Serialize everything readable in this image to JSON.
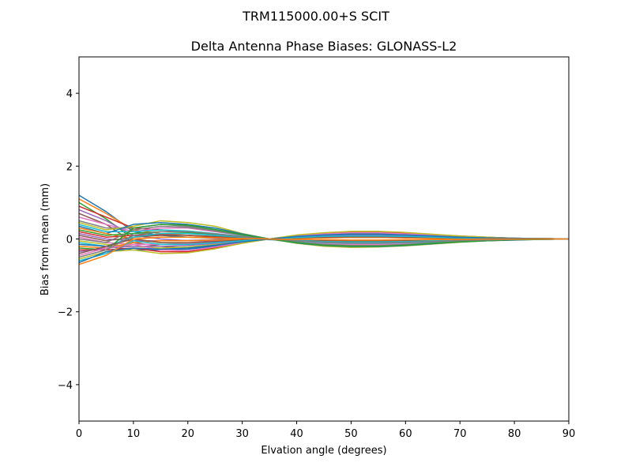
{
  "figure": {
    "suptitle": "TRM115000.00+S  SCIT"
  },
  "chart_data": {
    "type": "line",
    "title": "Delta Antenna Phase Biases: GLONASS-L2",
    "xlabel": "Elvation angle (degrees)",
    "ylabel": "Bias from mean (mm)",
    "xlim": [
      0,
      90
    ],
    "ylim": [
      -5,
      5
    ],
    "xticks": [
      0,
      10,
      20,
      30,
      40,
      50,
      60,
      70,
      80,
      90
    ],
    "yticks": [
      -4,
      -2,
      0,
      2,
      4
    ],
    "xtick_labels": [
      "0",
      "10",
      "20",
      "30",
      "40",
      "50",
      "60",
      "70",
      "80",
      "90"
    ],
    "ytick_labels": [
      "−4",
      "−2",
      "0",
      "2",
      "4"
    ],
    "grid": false,
    "legend": "none",
    "x": [
      0,
      5,
      10,
      15,
      20,
      25,
      30,
      35,
      40,
      45,
      50,
      55,
      60,
      65,
      70,
      75,
      80,
      85,
      90
    ],
    "colors": [
      "#1f77b4",
      "#ff7f0e",
      "#2ca02c",
      "#d62728",
      "#9467bd",
      "#8c564b",
      "#e377c2",
      "#7f7f7f",
      "#bcbd22",
      "#17becf"
    ],
    "series": [
      {
        "values": [
          1.2,
          0.75,
          0.2,
          0.1,
          0.05,
          0.02,
          0.0,
          -0.02,
          -0.05,
          -0.08,
          -0.1,
          -0.1,
          -0.09,
          -0.07,
          -0.05,
          -0.03,
          -0.02,
          -0.01,
          0.0
        ]
      },
      {
        "values": [
          1.1,
          0.7,
          0.25,
          0.15,
          0.1,
          0.05,
          0.02,
          0.0,
          -0.04,
          -0.07,
          -0.09,
          -0.09,
          -0.08,
          -0.06,
          -0.04,
          -0.03,
          -0.02,
          -0.01,
          0.0
        ]
      },
      {
        "values": [
          1.0,
          0.55,
          0.0,
          -0.1,
          -0.12,
          -0.08,
          -0.04,
          0.0,
          0.04,
          0.07,
          0.09,
          0.09,
          0.08,
          0.06,
          0.04,
          0.03,
          0.02,
          0.01,
          0.0
        ]
      },
      {
        "values": [
          0.9,
          0.6,
          0.3,
          0.25,
          0.2,
          0.12,
          0.05,
          0.0,
          -0.05,
          -0.1,
          -0.12,
          -0.12,
          -0.1,
          -0.08,
          -0.05,
          -0.03,
          -0.02,
          -0.01,
          0.0
        ]
      },
      {
        "values": [
          0.8,
          0.5,
          0.1,
          0.0,
          -0.05,
          -0.05,
          -0.03,
          0.0,
          0.03,
          0.06,
          0.07,
          0.07,
          0.06,
          0.05,
          0.03,
          0.02,
          0.01,
          0.0,
          0.0
        ]
      },
      {
        "values": [
          0.7,
          0.4,
          -0.1,
          -0.2,
          -0.25,
          -0.2,
          -0.1,
          0.0,
          0.07,
          0.12,
          0.14,
          0.14,
          0.12,
          0.09,
          0.06,
          0.04,
          0.02,
          0.01,
          0.0
        ]
      },
      {
        "values": [
          0.6,
          0.4,
          0.2,
          0.3,
          0.3,
          0.2,
          0.1,
          0.0,
          -0.08,
          -0.13,
          -0.15,
          -0.15,
          -0.13,
          -0.1,
          -0.07,
          -0.04,
          -0.02,
          -0.01,
          0.0
        ]
      },
      {
        "values": [
          0.5,
          0.3,
          0.3,
          0.4,
          0.35,
          0.25,
          0.12,
          0.0,
          -0.1,
          -0.16,
          -0.2,
          -0.2,
          -0.17,
          -0.13,
          -0.08,
          -0.05,
          -0.02,
          -0.01,
          0.0
        ]
      },
      {
        "values": [
          0.45,
          0.25,
          0.35,
          0.5,
          0.45,
          0.35,
          0.15,
          0.0,
          -0.12,
          -0.2,
          -0.23,
          -0.22,
          -0.19,
          -0.14,
          -0.09,
          -0.05,
          -0.03,
          -0.01,
          0.0
        ]
      },
      {
        "values": [
          0.4,
          0.2,
          0.2,
          0.25,
          0.22,
          0.15,
          0.07,
          0.0,
          -0.06,
          -0.1,
          -0.12,
          -0.12,
          -0.1,
          -0.08,
          -0.05,
          -0.03,
          -0.02,
          -0.01,
          0.0
        ]
      },
      {
        "values": [
          0.35,
          0.15,
          0.4,
          0.45,
          0.4,
          0.3,
          0.14,
          0.0,
          -0.11,
          -0.18,
          -0.21,
          -0.21,
          -0.18,
          -0.13,
          -0.08,
          -0.05,
          -0.03,
          -0.01,
          0.0
        ]
      },
      {
        "values": [
          0.3,
          0.15,
          0.0,
          0.05,
          0.05,
          0.03,
          0.01,
          0.0,
          -0.02,
          -0.03,
          -0.04,
          -0.04,
          -0.03,
          -0.02,
          -0.01,
          -0.01,
          0.0,
          0.0,
          0.0
        ]
      },
      {
        "values": [
          0.25,
          0.1,
          0.15,
          0.2,
          0.18,
          0.12,
          0.06,
          0.0,
          -0.05,
          -0.08,
          -0.1,
          -0.1,
          -0.08,
          -0.06,
          -0.04,
          -0.02,
          -0.01,
          0.0,
          0.0
        ]
      },
      {
        "values": [
          0.2,
          0.05,
          0.1,
          0.12,
          0.1,
          0.06,
          0.03,
          0.0,
          -0.03,
          -0.05,
          -0.06,
          -0.06,
          -0.05,
          -0.04,
          -0.02,
          -0.01,
          -0.01,
          0.0,
          0.0
        ]
      },
      {
        "values": [
          0.15,
          0.0,
          -0.05,
          -0.05,
          -0.04,
          -0.02,
          -0.01,
          0.0,
          0.02,
          0.03,
          0.04,
          0.04,
          0.03,
          0.02,
          0.01,
          0.01,
          0.0,
          0.0,
          0.0
        ]
      },
      {
        "values": [
          0.1,
          -0.05,
          0.05,
          0.1,
          0.1,
          0.07,
          0.03,
          0.0,
          -0.03,
          -0.05,
          -0.06,
          -0.06,
          -0.05,
          -0.04,
          -0.02,
          -0.01,
          -0.01,
          0.0,
          0.0
        ]
      },
      {
        "values": [
          0.05,
          -0.1,
          -0.15,
          -0.15,
          -0.13,
          -0.08,
          -0.03,
          0.0,
          0.04,
          0.07,
          0.08,
          0.08,
          0.07,
          0.05,
          0.03,
          0.02,
          0.01,
          0.0,
          0.0
        ]
      },
      {
        "values": [
          0.0,
          -0.1,
          0.25,
          0.35,
          0.32,
          0.22,
          0.1,
          0.0,
          -0.09,
          -0.15,
          -0.18,
          -0.18,
          -0.15,
          -0.11,
          -0.07,
          -0.04,
          -0.02,
          -0.01,
          0.0
        ]
      },
      {
        "values": [
          -0.05,
          -0.15,
          -0.2,
          -0.25,
          -0.22,
          -0.15,
          -0.07,
          0.0,
          0.06,
          0.1,
          0.12,
          0.12,
          0.1,
          0.08,
          0.05,
          0.03,
          0.02,
          0.01,
          0.0
        ]
      },
      {
        "values": [
          -0.1,
          -0.2,
          0.05,
          0.15,
          0.15,
          0.1,
          0.05,
          0.0,
          -0.04,
          -0.07,
          -0.08,
          -0.08,
          -0.07,
          -0.05,
          -0.03,
          -0.02,
          -0.01,
          0.0,
          0.0
        ]
      },
      {
        "values": [
          -0.15,
          -0.2,
          -0.3,
          -0.3,
          -0.28,
          -0.2,
          -0.09,
          0.0,
          0.08,
          0.13,
          0.16,
          0.16,
          0.14,
          0.1,
          0.06,
          0.04,
          0.02,
          0.01,
          0.0
        ]
      },
      {
        "values": [
          -0.2,
          -0.25,
          -0.1,
          -0.05,
          -0.05,
          -0.03,
          -0.01,
          0.0,
          0.02,
          0.03,
          0.04,
          0.04,
          0.03,
          0.02,
          0.02,
          0.01,
          0.0,
          0.0,
          0.0
        ]
      },
      {
        "values": [
          -0.25,
          -0.3,
          0.3,
          0.4,
          0.38,
          0.26,
          0.12,
          0.0,
          -0.1,
          -0.17,
          -0.2,
          -0.2,
          -0.17,
          -0.12,
          -0.08,
          -0.05,
          -0.02,
          -0.01,
          0.0
        ]
      },
      {
        "values": [
          -0.3,
          -0.3,
          -0.25,
          -0.35,
          -0.35,
          -0.25,
          -0.11,
          0.0,
          0.1,
          0.16,
          0.19,
          0.19,
          0.16,
          0.12,
          0.08,
          0.05,
          0.02,
          0.01,
          0.0
        ]
      },
      {
        "values": [
          -0.35,
          -0.25,
          -0.2,
          -0.2,
          -0.18,
          -0.12,
          -0.06,
          0.0,
          0.05,
          0.08,
          0.1,
          0.1,
          0.08,
          0.06,
          0.04,
          0.02,
          0.01,
          0.0,
          0.0
        ]
      },
      {
        "values": [
          -0.4,
          -0.2,
          0.0,
          -0.1,
          -0.1,
          -0.07,
          -0.03,
          0.0,
          0.03,
          0.05,
          0.06,
          0.06,
          0.05,
          0.04,
          0.02,
          0.01,
          0.01,
          0.0,
          0.0
        ]
      },
      {
        "values": [
          -0.45,
          -0.25,
          -0.15,
          -0.3,
          -0.32,
          -0.22,
          -0.1,
          0.0,
          0.09,
          0.14,
          0.17,
          0.17,
          0.14,
          0.11,
          0.07,
          0.04,
          0.02,
          0.01,
          0.0
        ]
      },
      {
        "values": [
          -0.5,
          -0.3,
          0.1,
          0.2,
          0.2,
          0.14,
          0.06,
          0.0,
          -0.05,
          -0.09,
          -0.11,
          -0.11,
          -0.09,
          -0.07,
          -0.04,
          -0.03,
          -0.01,
          0.0,
          0.0
        ]
      },
      {
        "values": [
          -0.55,
          -0.35,
          -0.3,
          -0.4,
          -0.38,
          -0.27,
          -0.12,
          0.0,
          0.11,
          0.17,
          0.21,
          0.21,
          0.18,
          0.13,
          0.08,
          0.05,
          0.02,
          0.01,
          0.0
        ]
      },
      {
        "values": [
          -0.6,
          -0.4,
          -0.05,
          -0.15,
          -0.15,
          -0.1,
          -0.05,
          0.0,
          0.04,
          0.07,
          0.08,
          0.08,
          0.07,
          0.05,
          0.03,
          0.02,
          0.01,
          0.0,
          0.0
        ]
      },
      {
        "values": [
          -0.65,
          -0.35,
          -0.25,
          -0.28,
          -0.25,
          -0.17,
          -0.08,
          0.0,
          0.07,
          0.11,
          0.13,
          0.13,
          0.11,
          0.08,
          0.05,
          0.03,
          0.02,
          0.01,
          0.0
        ]
      },
      {
        "values": [
          -0.7,
          -0.45,
          0.0,
          0.05,
          0.05,
          0.03,
          0.01,
          0.0,
          -0.01,
          -0.02,
          -0.03,
          -0.03,
          -0.02,
          -0.02,
          -0.01,
          0.0,
          0.0,
          0.0,
          0.0
        ]
      }
    ]
  }
}
